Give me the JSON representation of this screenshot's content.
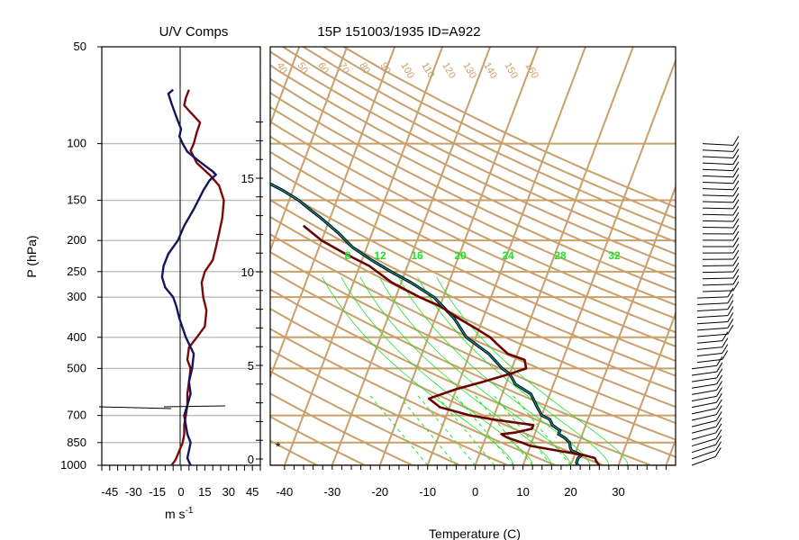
{
  "colors": {
    "tan": "#c9a06a",
    "hline": "#bdbdbd",
    "u_series": "#7a0a0a",
    "v_series": "#15155e",
    "temperature": "#6a0000",
    "dewpoint_outline": "#000000",
    "dewpoint_fill": "#008c8c",
    "green": "#22e02a",
    "barbs": "#000000"
  },
  "chart_data": [
    {
      "type": "line",
      "title": "U/V Comps",
      "xlabel": "m s",
      "xlabel_sup": "-1",
      "ylabel": "P (hPa)",
      "y_scale": "log",
      "xlim": [
        -50,
        50
      ],
      "ylim": [
        1000,
        50
      ],
      "x_ticks": [
        -45,
        -30,
        -15,
        0,
        15,
        30,
        45
      ],
      "x_tick_labels": [
        "-45",
        "-30",
        "-15",
        "0",
        "15",
        "30",
        "45"
      ],
      "y_ticks": [
        50,
        100,
        150,
        200,
        250,
        300,
        400,
        500,
        700,
        850,
        1000
      ],
      "y_tick_labels": [
        "50",
        "100",
        "150",
        "200",
        "250",
        "300",
        "400",
        "500",
        "700",
        "850",
        "1000"
      ],
      "gridlines_y": [
        100,
        150,
        200,
        250,
        300,
        400,
        500,
        700,
        850,
        1000
      ],
      "series": [
        {
          "key": "u",
          "color": "#7a0a0a",
          "points": [
            [
              1000,
              -6
            ],
            [
              970,
              -4
            ],
            [
              950,
              -3
            ],
            [
              900,
              -1
            ],
            [
              850,
              1
            ],
            [
              800,
              2
            ],
            [
              750,
              2
            ],
            [
              700,
              3
            ],
            [
              650,
              4
            ],
            [
              600,
              4
            ],
            [
              550,
              5
            ],
            [
              500,
              6
            ],
            [
              470,
              4
            ],
            [
              430,
              5
            ],
            [
              400,
              10
            ],
            [
              370,
              15
            ],
            [
              330,
              16
            ],
            [
              300,
              14
            ],
            [
              270,
              13
            ],
            [
              250,
              15
            ],
            [
              230,
              20
            ],
            [
              210,
              22
            ],
            [
              190,
              24
            ],
            [
              170,
              26
            ],
            [
              150,
              27
            ],
            [
              135,
              24
            ],
            [
              125,
              18
            ],
            [
              115,
              10
            ],
            [
              105,
              6
            ],
            [
              100,
              8
            ],
            [
              92,
              10
            ],
            [
              86,
              12
            ],
            [
              80,
              6
            ],
            [
              76,
              2
            ],
            [
              72,
              3
            ],
            [
              68,
              5
            ]
          ]
        },
        {
          "key": "v",
          "color": "#15155e",
          "points": [
            [
              1000,
              6
            ],
            [
              950,
              4
            ],
            [
              900,
              5
            ],
            [
              850,
              6
            ],
            [
              800,
              4
            ],
            [
              750,
              3
            ],
            [
              700,
              2
            ],
            [
              650,
              4
            ],
            [
              600,
              6
            ],
            [
              550,
              5
            ],
            [
              500,
              7
            ],
            [
              450,
              8
            ],
            [
              400,
              3
            ],
            [
              350,
              -1
            ],
            [
              320,
              -3
            ],
            [
              300,
              -5
            ],
            [
              280,
              -10
            ],
            [
              260,
              -12
            ],
            [
              240,
              -11
            ],
            [
              220,
              -8
            ],
            [
              200,
              -2
            ],
            [
              180,
              2
            ],
            [
              160,
              8
            ],
            [
              140,
              14
            ],
            [
              130,
              18
            ],
            [
              125,
              22
            ],
            [
              122,
              20
            ],
            [
              118,
              16
            ],
            [
              112,
              10
            ],
            [
              106,
              4
            ],
            [
              100,
              1
            ],
            [
              95,
              -1
            ],
            [
              90,
              0
            ],
            [
              85,
              -2
            ],
            [
              80,
              -4
            ],
            [
              75,
              -6
            ],
            [
              70,
              -8
            ],
            [
              68,
              -5
            ]
          ]
        }
      ]
    },
    {
      "type": "line",
      "title": "15P 151003/1935 ID=A922",
      "xlabel": "Temperature (C)",
      "xlim": [
        -43,
        42
      ],
      "x_ticks": [
        -40,
        -30,
        -20,
        -10,
        0,
        10,
        20,
        30
      ],
      "x_tick_labels": [
        "-40",
        "-30",
        "-20",
        "-10",
        "0",
        "10",
        "20",
        "30"
      ],
      "height_km_ticks": [
        0,
        5,
        10,
        15
      ],
      "height_km_labels": [
        "0",
        "5",
        "10",
        "15"
      ],
      "theta_labels": [
        "40",
        "50",
        "60",
        "70",
        "80",
        "90",
        "100",
        "110",
        "120",
        "130",
        "140",
        "150",
        "160"
      ],
      "mixing_ratio_labels": [
        "8",
        "12",
        "16",
        "20",
        "24",
        "28",
        "32"
      ],
      "temperature_profile": [
        [
          1000,
          26
        ],
        [
          970,
          25
        ],
        [
          950,
          24.5
        ],
        [
          930,
          22
        ],
        [
          900,
          16
        ],
        [
          870,
          10
        ],
        [
          850,
          8
        ],
        [
          820,
          4.5
        ],
        [
          800,
          3
        ],
        [
          790,
          6
        ],
        [
          770,
          9
        ],
        [
          750,
          9
        ],
        [
          720,
          0
        ],
        [
          700,
          -5
        ],
        [
          660,
          -12
        ],
        [
          620,
          -15
        ],
        [
          580,
          -10
        ],
        [
          550,
          -5
        ],
        [
          520,
          0
        ],
        [
          500,
          3
        ],
        [
          470,
          2
        ],
        [
          450,
          -2
        ],
        [
          420,
          -5
        ],
        [
          400,
          -7
        ],
        [
          380,
          -10
        ],
        [
          350,
          -15
        ],
        [
          320,
          -20
        ],
        [
          300,
          -25
        ],
        [
          270,
          -32
        ],
        [
          240,
          -38
        ],
        [
          220,
          -44
        ],
        [
          200,
          -50
        ],
        [
          180,
          -55
        ]
      ],
      "dewpoint_profile": [
        [
          1000,
          21.5
        ],
        [
          980,
          21
        ],
        [
          950,
          21
        ],
        [
          930,
          21.5
        ],
        [
          900,
          19
        ],
        [
          880,
          18.5
        ],
        [
          850,
          18
        ],
        [
          820,
          16.5
        ],
        [
          800,
          15
        ],
        [
          780,
          15
        ],
        [
          750,
          13
        ],
        [
          720,
          12
        ],
        [
          700,
          10
        ],
        [
          650,
          8
        ],
        [
          600,
          6
        ],
        [
          560,
          2
        ],
        [
          520,
          0
        ],
        [
          500,
          -2
        ],
        [
          450,
          -6
        ],
        [
          400,
          -12
        ],
        [
          350,
          -16
        ],
        [
          300,
          -22
        ],
        [
          270,
          -28
        ],
        [
          250,
          -33
        ],
        [
          230,
          -38
        ],
        [
          210,
          -43
        ],
        [
          190,
          -47
        ],
        [
          170,
          -52
        ],
        [
          160,
          -55
        ],
        [
          150,
          -58
        ],
        [
          140,
          -62
        ],
        [
          130,
          -67
        ],
        [
          120,
          -72
        ],
        [
          110,
          -77
        ],
        [
          100,
          -82
        ],
        [
          95,
          -85
        ]
      ],
      "barb_label": "*"
    }
  ]
}
